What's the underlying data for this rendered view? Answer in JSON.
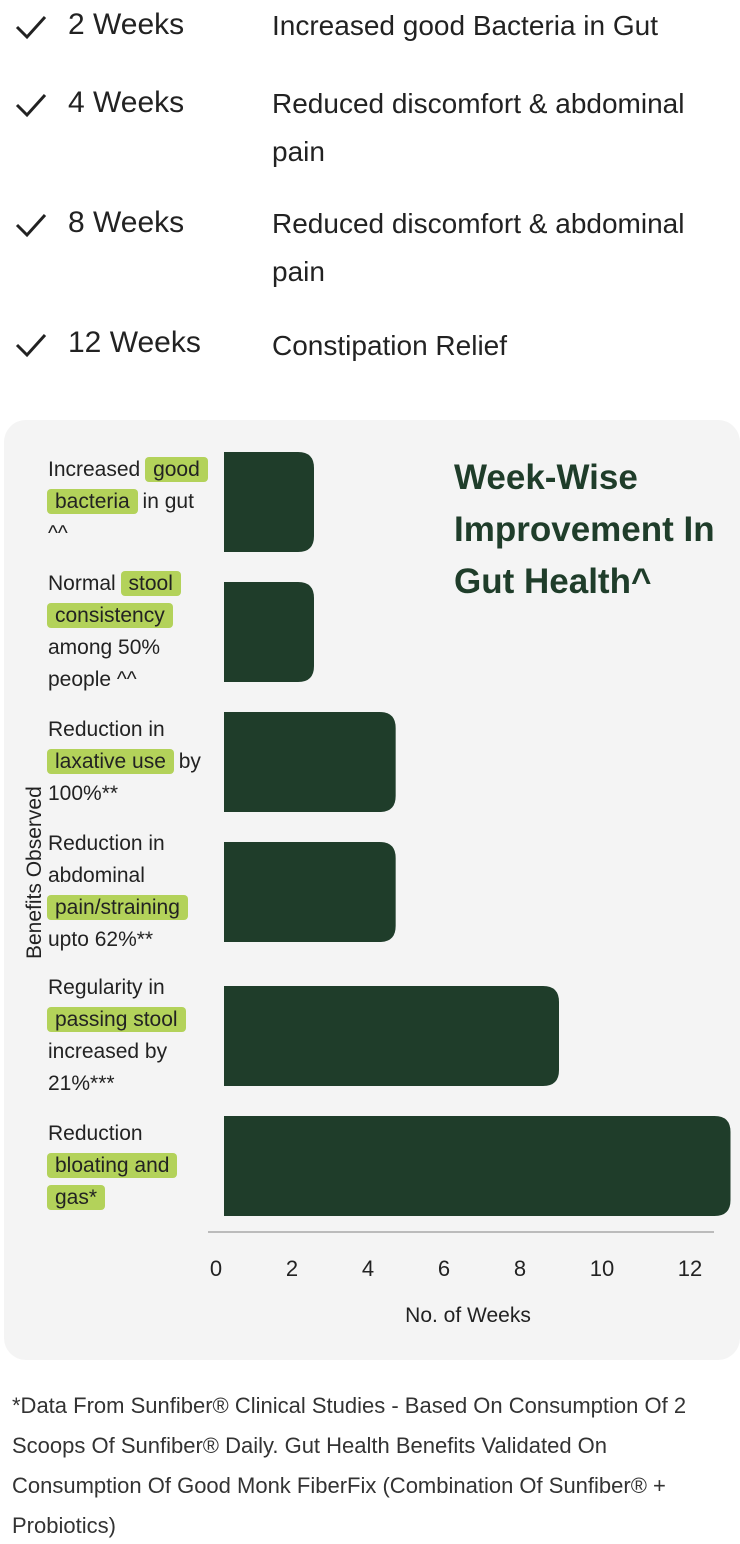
{
  "timeline": [
    {
      "week": "2 Weeks",
      "lines": [
        "Increased good Bacteria in Gut"
      ]
    },
    {
      "week": "4 Weeks",
      "lines": [
        "Reduced discomfort & abdominal",
        "pain"
      ]
    },
    {
      "week": "8 Weeks",
      "lines": [
        "Reduced discomfort & abdominal",
        "pain"
      ]
    },
    {
      "week": "12 Weeks",
      "lines": [
        "Constipation Relief"
      ]
    }
  ],
  "chart_data": {
    "type": "bar",
    "orientation": "horizontal",
    "title": "Week-Wise Improvement In Gut Health^",
    "xlabel": "No. of Weeks",
    "ylabel": "Benefits Observed",
    "xlim": [
      0,
      12.6
    ],
    "xticks": [
      "0",
      "2",
      "4",
      "6",
      "8",
      "10",
      "12"
    ],
    "grid": false,
    "bar_color": "#1f3d2a",
    "highlight_color": "#b3d25a",
    "categories": [
      {
        "lines": [
          [
            {
              "t": "Increased "
            },
            {
              "t": "good",
              "hl": true
            }
          ],
          [
            {
              "t": "bacteria",
              "hl": true
            },
            {
              "t": " in gut"
            }
          ],
          [
            {
              "t": "^^"
            }
          ]
        ]
      },
      {
        "lines": [
          [
            {
              "t": "Normal "
            },
            {
              "t": "stool",
              "hl": true
            }
          ],
          [
            {
              "t": "consistency",
              "hl": true
            }
          ],
          [
            {
              "t": "among 50%"
            }
          ],
          [
            {
              "t": "people ^^"
            }
          ]
        ]
      },
      {
        "lines": [
          [
            {
              "t": "Reduction in"
            }
          ],
          [
            {
              "t": "laxative use",
              "hl": true
            },
            {
              "t": " by"
            }
          ],
          [
            {
              "t": "100%**"
            }
          ]
        ]
      },
      {
        "lines": [
          [
            {
              "t": "Reduction in"
            }
          ],
          [
            {
              "t": "abdominal"
            }
          ],
          [
            {
              "t": "pain/straining",
              "hl": true
            }
          ],
          [
            {
              "t": "upto 62%**"
            }
          ]
        ]
      },
      {
        "lines": [
          [
            {
              "t": "Regularity in"
            }
          ],
          [
            {
              "t": "passing stool",
              "hl": true
            }
          ],
          [
            {
              "t": "increased by"
            }
          ],
          [
            {
              "t": "21%***"
            }
          ]
        ]
      },
      {
        "lines": [
          [
            {
              "t": "Reduction"
            }
          ],
          [
            {
              "t": "bloating and",
              "hl": true
            }
          ],
          [
            {
              "t": "gas*",
              "hl": true
            }
          ]
        ]
      }
    ],
    "values": [
      2.4,
      2.4,
      4.4,
      4.4,
      8.4,
      12.6
    ]
  },
  "footnote": "*Data From Sunfiber® Clinical Studies - Based On Consumption Of 2 Scoops Of Sunfiber® Daily. Gut Health Benefits Validated On Consumption Of Good Monk FiberFix (Combination Of Sunfiber® + Probiotics)"
}
